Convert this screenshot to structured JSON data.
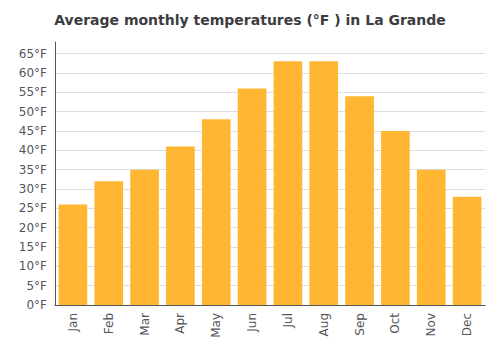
{
  "chart_data": {
    "type": "bar",
    "title": "Average monthly temperatures (°F ) in La Grande",
    "categories": [
      "Jan",
      "Feb",
      "Mar",
      "Apr",
      "May",
      "Jun",
      "Jul",
      "Aug",
      "Sep",
      "Oct",
      "Nov",
      "Dec"
    ],
    "values": [
      26,
      32,
      35,
      41,
      48,
      56,
      63,
      63,
      54,
      45,
      35,
      28
    ],
    "color": "#FFB733",
    "ylim": [
      0,
      68
    ],
    "yticks": [
      {
        "value": 0,
        "label": "0°F"
      },
      {
        "value": 5,
        "label": "5°F"
      },
      {
        "value": 10,
        "label": "10°F"
      },
      {
        "value": 15,
        "label": "15°F"
      },
      {
        "value": 20,
        "label": "20°F"
      },
      {
        "value": 25,
        "label": "25°F"
      },
      {
        "value": 30,
        "label": "30°F"
      },
      {
        "value": 35,
        "label": "35°F"
      },
      {
        "value": 40,
        "label": "40°F"
      },
      {
        "value": 45,
        "label": "45°F"
      },
      {
        "value": 50,
        "label": "50°F"
      },
      {
        "value": 55,
        "label": "55°F"
      },
      {
        "value": 60,
        "label": "60°F"
      },
      {
        "value": 65,
        "label": "65°F"
      }
    ],
    "grid": true
  }
}
